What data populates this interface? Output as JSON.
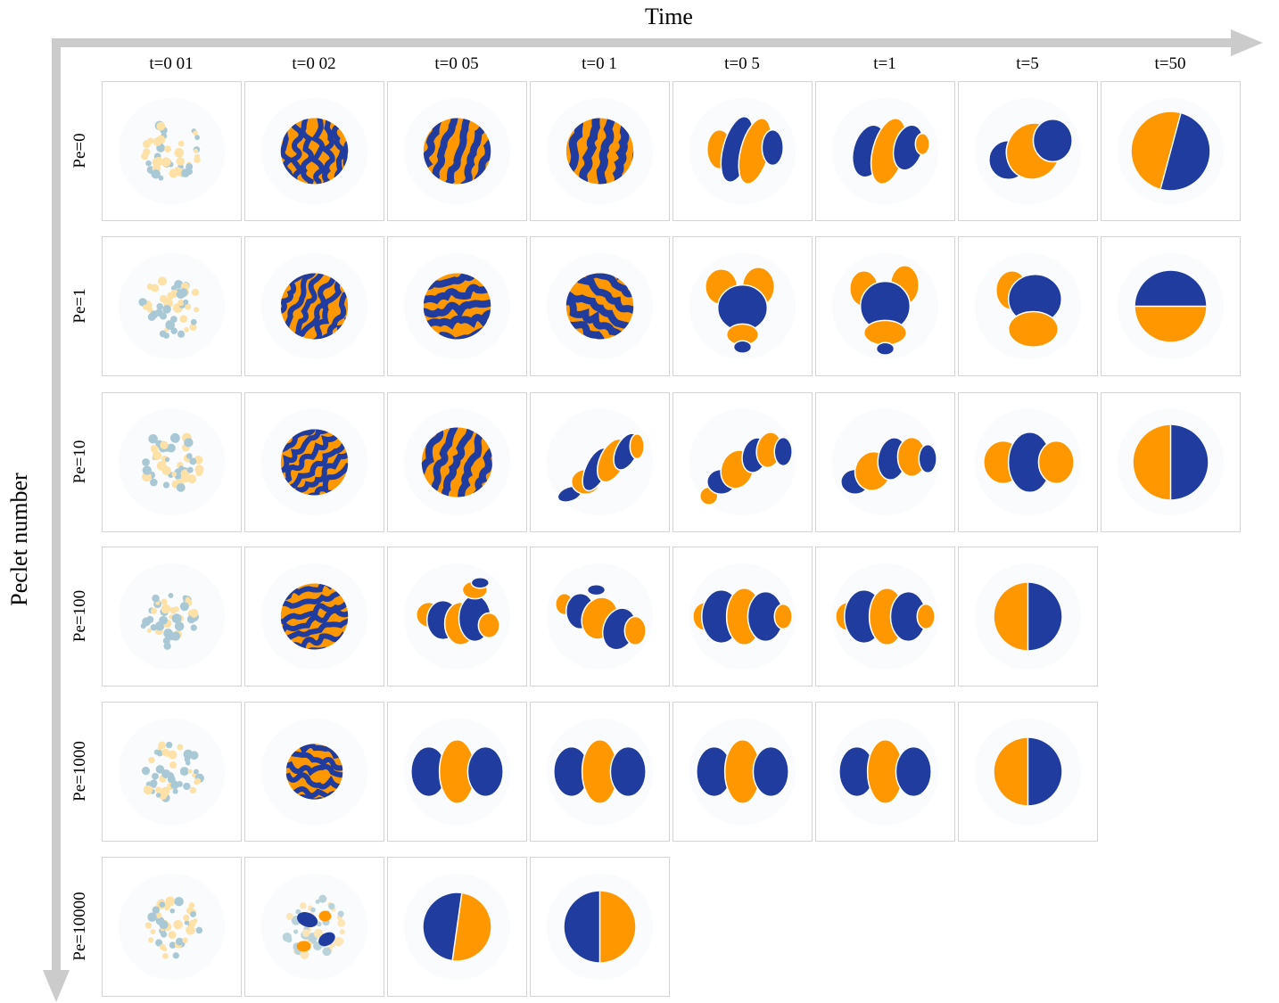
{
  "titles": {
    "time": "Time",
    "peclet": "Peclet number"
  },
  "columns": [
    "t=0 01",
    "t=0 02",
    "t=0 05",
    "t=0 1",
    "t=0 5",
    "t=1",
    "t=5",
    "t=50"
  ],
  "rows": [
    {
      "label": "Pe=0",
      "frames": 8
    },
    {
      "label": "Pe=1",
      "frames": 8
    },
    {
      "label": "Pe=10",
      "frames": 8
    },
    {
      "label": "Pe=100",
      "frames": 7
    },
    {
      "label": "Pe=1000",
      "frames": 7
    },
    {
      "label": "Pe=10000",
      "frames": 4
    }
  ],
  "colors": {
    "phase_a": "#1f3c9e",
    "phase_b": "#ff9800",
    "arrow": "#cbcbcb",
    "noise_a": "#8fb8c8",
    "noise_b": "#ffd98a"
  }
}
